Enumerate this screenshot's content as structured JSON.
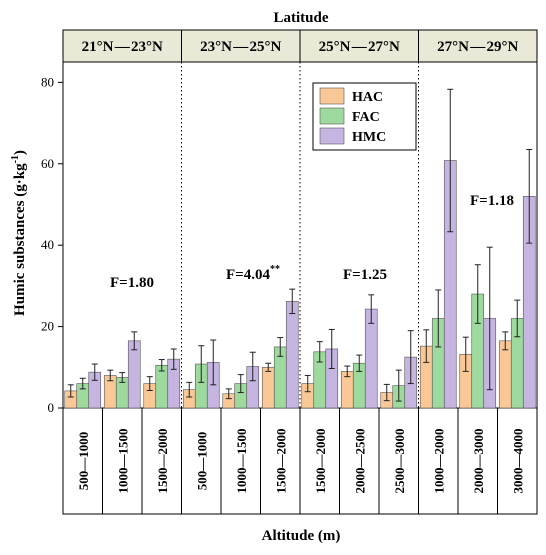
{
  "chart_data": {
    "type": "bar",
    "top_title": "Latitude",
    "xlabel": "Altitude (m)",
    "ylabel": "Humic substances (g·kg",
    "ylabel_sup": "-1",
    "ylabel_end": ")",
    "ylim": [
      0,
      85
    ],
    "yticks": [
      0,
      20,
      40,
      60,
      80
    ],
    "legend": {
      "placement": "top-center"
    },
    "colors": {
      "HAC": "#f9c896",
      "FAC": "#9ed99e",
      "HMC": "#c5b5e0",
      "header_bg": "#eae8d6"
    },
    "groups": [
      {
        "label": "21°N — 23°N",
        "annotation": "F=1.80",
        "annotation_sup": "",
        "categories": [
          "500—1000",
          "1000—1500",
          "1500—2000"
        ],
        "series": [
          {
            "name": "HAC",
            "values": [
              4.2,
              8.0,
              6.0
            ],
            "errors": [
              1.5,
              1.3,
              1.7
            ]
          },
          {
            "name": "FAC",
            "values": [
              6.0,
              7.5,
              10.5
            ],
            "errors": [
              1.3,
              1.2,
              1.4
            ]
          },
          {
            "name": "HMC",
            "values": [
              8.8,
              16.5,
              12.0
            ],
            "errors": [
              2.0,
              2.2,
              2.5
            ]
          }
        ]
      },
      {
        "label": "23°N — 25°N",
        "annotation": "F=4.04",
        "annotation_sup": "**",
        "categories": [
          "500—1000",
          "1000—1500",
          "1500—2000"
        ],
        "series": [
          {
            "name": "HAC",
            "values": [
              4.5,
              3.5,
              10.0
            ],
            "errors": [
              1.8,
              1.2,
              1.0
            ]
          },
          {
            "name": "FAC",
            "values": [
              10.8,
              6.0,
              15.0
            ],
            "errors": [
              4.5,
              2.2,
              2.3
            ]
          },
          {
            "name": "HMC",
            "values": [
              11.2,
              10.2,
              26.2
            ],
            "errors": [
              5.5,
              3.5,
              3.0
            ]
          }
        ]
      },
      {
        "label": "25°N — 27°N",
        "annotation": "F=1.25",
        "annotation_sup": "",
        "categories": [
          "1500—2000",
          "2000—2500",
          "2500—3000"
        ],
        "series": [
          {
            "name": "HAC",
            "values": [
              6.0,
              9.0,
              3.8
            ],
            "errors": [
              2.0,
              1.3,
              2.0
            ]
          },
          {
            "name": "FAC",
            "values": [
              13.8,
              11.0,
              5.5
            ],
            "errors": [
              2.5,
              2.0,
              3.8
            ]
          },
          {
            "name": "HMC",
            "values": [
              14.5,
              24.3,
              12.5
            ],
            "errors": [
              4.8,
              3.5,
              6.5
            ]
          }
        ]
      },
      {
        "label": "27°N — 29°N",
        "annotation": "F=1.18",
        "annotation_sup": "",
        "categories": [
          "1000—2000",
          "2000—3000",
          "3000—4000"
        ],
        "series": [
          {
            "name": "HAC",
            "values": [
              15.2,
              13.2,
              16.5
            ],
            "errors": [
              4.0,
              4.2,
              2.2
            ]
          },
          {
            "name": "FAC",
            "values": [
              22.0,
              28.0,
              22.0
            ],
            "errors": [
              7.0,
              7.2,
              4.5
            ]
          },
          {
            "name": "HMC",
            "values": [
              60.8,
              22.0,
              52.0
            ],
            "errors": [
              17.5,
              17.5,
              11.5
            ]
          }
        ]
      }
    ]
  }
}
